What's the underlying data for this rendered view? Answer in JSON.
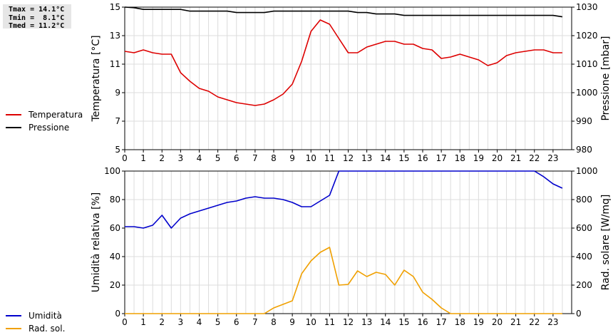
{
  "stats": {
    "tmax": "Tmax = 14.1°C",
    "tmin": "Tmin =  8.1°C",
    "tmed": "Tmed = 11.2°C"
  },
  "legend_top": [
    {
      "label": "Temperatura",
      "color": "#dd0000"
    },
    {
      "label": "Pressione",
      "color": "#000000"
    }
  ],
  "legend_bottom": [
    {
      "label": "Umidità",
      "color": "#0000cc"
    },
    {
      "label": "Rad. sol.",
      "color": "#f0a000"
    }
  ],
  "chart_data": [
    {
      "type": "line",
      "xlim": [
        0,
        24
      ],
      "xticks": [
        "0",
        "1",
        "2",
        "3",
        "4",
        "5",
        "6",
        "7",
        "8",
        "9",
        "10",
        "11",
        "12",
        "13",
        "14",
        "15",
        "16",
        "17",
        "18",
        "19",
        "20",
        "21",
        "22",
        "23"
      ],
      "ylabel": "Temperatura [°C]",
      "ylim": [
        5,
        15
      ],
      "yticks": [
        "5",
        "7",
        "9",
        "11",
        "13",
        "15"
      ],
      "y2label": "Pressione [mbar]",
      "y2lim": [
        980,
        1030
      ],
      "y2ticks": [
        "980",
        "990",
        "1000",
        "1010",
        "1020",
        "1030"
      ],
      "grid": true,
      "series": [
        {
          "name": "Temperatura",
          "color": "#dd0000",
          "axis": "left",
          "x": [
            0,
            0.5,
            1,
            1.5,
            2,
            2.5,
            3,
            3.5,
            4,
            4.5,
            5,
            5.5,
            6,
            6.5,
            7,
            7.5,
            8,
            8.5,
            9,
            9.5,
            10,
            10.5,
            11,
            11.5,
            12,
            12.5,
            13,
            13.5,
            14,
            14.5,
            15,
            15.5,
            16,
            16.5,
            17,
            17.5,
            18,
            18.5,
            19,
            19.5,
            20,
            20.5,
            21,
            21.5,
            22,
            22.5,
            23,
            23.5
          ],
          "y": [
            11.9,
            11.8,
            12.0,
            11.8,
            11.7,
            11.7,
            10.4,
            9.8,
            9.3,
            9.1,
            8.7,
            8.5,
            8.3,
            8.2,
            8.1,
            8.2,
            8.5,
            8.9,
            9.6,
            11.2,
            13.3,
            14.1,
            13.8,
            12.8,
            11.8,
            11.8,
            12.2,
            12.4,
            12.6,
            12.6,
            12.4,
            12.4,
            12.1,
            12.0,
            11.4,
            11.5,
            11.7,
            11.5,
            11.3,
            10.9,
            11.1,
            11.6,
            11.8,
            11.9,
            12.0,
            12.0,
            11.8,
            11.8
          ]
        },
        {
          "name": "Pressione",
          "color": "#000000",
          "axis": "right",
          "x": [
            0,
            0.5,
            1,
            1.5,
            2,
            2.5,
            3,
            3.5,
            4,
            4.5,
            5,
            5.5,
            6,
            6.5,
            7,
            7.5,
            8,
            8.5,
            9,
            9.5,
            10,
            10.5,
            11,
            11.5,
            12,
            12.5,
            13,
            13.5,
            14,
            14.5,
            15,
            15.5,
            16,
            16.5,
            17,
            17.5,
            18,
            18.5,
            19,
            19.5,
            20,
            20.5,
            21,
            21.5,
            22,
            22.5,
            23,
            23.5
          ],
          "y": [
            1030,
            1029.8,
            1029.2,
            1029.2,
            1029.2,
            1029.2,
            1029.2,
            1028.6,
            1028.6,
            1028.6,
            1028.6,
            1028.6,
            1028.1,
            1028.1,
            1028.1,
            1028.1,
            1028.6,
            1028.6,
            1028.6,
            1028.6,
            1028.6,
            1028.6,
            1028.6,
            1028.6,
            1028.6,
            1028.1,
            1028.1,
            1027.6,
            1027.6,
            1027.6,
            1027.1,
            1027.1,
            1027.1,
            1027.1,
            1027.1,
            1027.1,
            1027.1,
            1027.1,
            1027.1,
            1027.1,
            1027.1,
            1027.1,
            1027.1,
            1027.1,
            1027.1,
            1027.1,
            1027.1,
            1026.6
          ]
        }
      ]
    },
    {
      "type": "line",
      "xlim": [
        0,
        24
      ],
      "xticks": [
        "0",
        "1",
        "2",
        "3",
        "4",
        "5",
        "6",
        "7",
        "8",
        "9",
        "10",
        "11",
        "12",
        "13",
        "14",
        "15",
        "16",
        "17",
        "18",
        "19",
        "20",
        "21",
        "22",
        "23"
      ],
      "ylabel": "Umidità relativa [%]",
      "ylim": [
        0,
        100
      ],
      "yticks": [
        "0",
        "20",
        "40",
        "60",
        "80",
        "100"
      ],
      "y2label": "Rad. solare [W/mq]",
      "y2lim": [
        0,
        1000
      ],
      "y2ticks": [
        "0",
        "200",
        "400",
        "600",
        "800",
        "1000"
      ],
      "grid": true,
      "series": [
        {
          "name": "Umidità",
          "color": "#0000cc",
          "axis": "left",
          "x": [
            0,
            0.5,
            1,
            1.5,
            2,
            2.5,
            3,
            3.5,
            4,
            4.5,
            5,
            5.5,
            6,
            6.5,
            7,
            7.5,
            8,
            8.5,
            9,
            9.5,
            10,
            10.5,
            11,
            11.5,
            12,
            12.5,
            13,
            13.5,
            14,
            14.5,
            15,
            15.5,
            16,
            16.5,
            17,
            17.5,
            18,
            18.5,
            19,
            19.5,
            20,
            20.5,
            21,
            21.5,
            22,
            22.5,
            23,
            23.5
          ],
          "y": [
            61,
            61,
            60,
            62,
            69,
            60,
            67,
            70,
            72,
            74,
            76,
            78,
            79,
            81,
            82,
            81,
            81,
            80,
            78,
            75,
            75,
            79,
            83,
            100,
            100,
            100,
            100,
            100,
            100,
            100,
            100,
            100,
            100,
            100,
            100,
            100,
            100,
            100,
            100,
            100,
            100,
            100,
            100,
            100,
            100,
            96,
            91,
            88
          ]
        },
        {
          "name": "Rad. sol.",
          "color": "#f0a000",
          "axis": "right",
          "x": [
            0,
            0.5,
            1,
            1.5,
            2,
            2.5,
            3,
            3.5,
            4,
            4.5,
            5,
            5.5,
            6,
            6.5,
            7,
            7.5,
            8,
            8.5,
            9,
            9.5,
            10,
            10.5,
            11,
            11.5,
            12,
            12.5,
            13,
            13.5,
            14,
            14.5,
            15,
            15.5,
            16,
            16.5,
            17,
            17.5,
            18,
            18.5,
            19,
            19.5,
            20,
            20.5,
            21,
            21.5,
            22,
            22.5,
            23,
            23.5
          ],
          "y": [
            0,
            0,
            0,
            0,
            0,
            0,
            0,
            0,
            0,
            0,
            0,
            0,
            0,
            0,
            0,
            0,
            40,
            65,
            90,
            280,
            370,
            430,
            465,
            200,
            205,
            300,
            260,
            290,
            275,
            200,
            305,
            260,
            150,
            100,
            40,
            0,
            0,
            0,
            0,
            0,
            0,
            0,
            0,
            0,
            0,
            0,
            0,
            0
          ]
        }
      ]
    }
  ]
}
